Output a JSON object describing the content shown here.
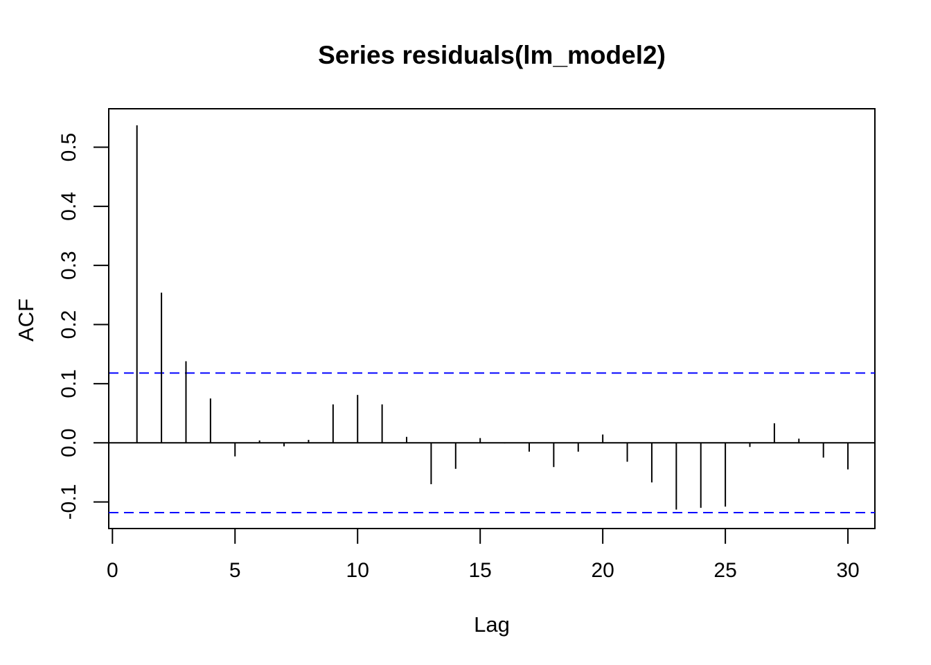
{
  "chart_data": {
    "type": "bar",
    "title": "Series residuals(lm_model2)",
    "xlabel": "Lag",
    "ylabel": "ACF",
    "xlim": [
      -0.15,
      31.1
    ],
    "ylim": [
      -0.145,
      0.565
    ],
    "x_ticks": [
      0,
      5,
      10,
      15,
      20,
      25,
      30
    ],
    "x_tick_labels": [
      "0",
      "5",
      "10",
      "15",
      "20",
      "25",
      "30"
    ],
    "y_ticks": [
      -0.1,
      0.0,
      0.1,
      0.2,
      0.3,
      0.4,
      0.5
    ],
    "y_tick_labels": [
      "-0.1",
      "0.0",
      "0.1",
      "0.2",
      "0.3",
      "0.4",
      "0.5"
    ],
    "lags": [
      1,
      2,
      3,
      4,
      5,
      6,
      7,
      8,
      9,
      10,
      11,
      12,
      13,
      14,
      15,
      16,
      17,
      18,
      19,
      20,
      21,
      22,
      23,
      24,
      25,
      26,
      27,
      28,
      29,
      30
    ],
    "acf": [
      0.537,
      0.254,
      0.138,
      0.075,
      -0.023,
      0.004,
      -0.006,
      0.005,
      0.065,
      0.081,
      0.065,
      0.01,
      -0.07,
      -0.044,
      0.008,
      -0.001,
      -0.015,
      -0.041,
      -0.015,
      0.014,
      -0.032,
      -0.067,
      -0.113,
      -0.11,
      -0.108,
      -0.007,
      0.033,
      0.007,
      -0.025,
      -0.045
    ],
    "confidence_limit": 0.118,
    "confidence_color": "#0000ff",
    "bar_color": "#000000",
    "grid": false,
    "legend": "none"
  }
}
